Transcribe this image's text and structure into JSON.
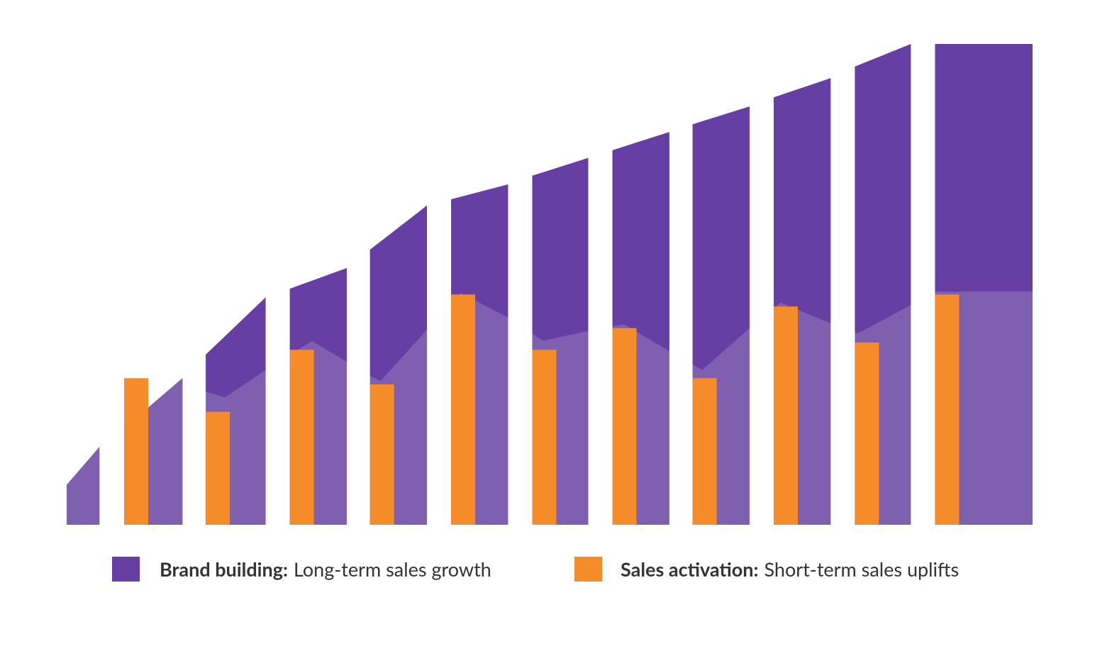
{
  "chart_data": {
    "type": "combo",
    "xlim": [
      0,
      100
    ],
    "ylim": [
      0,
      100
    ],
    "columns": [
      [
        0,
        3.4
      ],
      [
        5.95,
        12.0
      ],
      [
        14.4,
        20.6
      ],
      [
        23.1,
        29.0
      ],
      [
        31.4,
        37.3
      ],
      [
        39.8,
        45.7
      ],
      [
        48.2,
        54.0
      ],
      [
        56.5,
        62.4
      ],
      [
        64.8,
        70.7
      ],
      [
        73.2,
        79.1
      ],
      [
        81.6,
        87.4
      ],
      [
        89.9,
        100
      ]
    ],
    "series": [
      {
        "type": "area",
        "name": "Brand building:",
        "description": "Long-term sales growth",
        "color": "#673ea3",
        "x": [
          0,
          3.4,
          8.4,
          12.0,
          14.4,
          20.6,
          23.1,
          29.0,
          31.4,
          37.3,
          39.8,
          45.7,
          48.2,
          54.0,
          56.5,
          62.4,
          64.8,
          70.7,
          73.2,
          79.1,
          81.6,
          87.4,
          89.9,
          100
        ],
        "values": [
          8.3,
          16.2,
          24.3,
          30.5,
          35.4,
          47.3,
          49.1,
          53.4,
          57.2,
          66.4,
          67.7,
          70.8,
          72.6,
          76.3,
          77.9,
          81.7,
          83.3,
          87.0,
          88.9,
          92.9,
          95.3,
          100,
          100,
          100
        ]
      },
      {
        "type": "area",
        "color": "#7f5fb0",
        "x": [
          0,
          3.4,
          8.4,
          12.0,
          14.4,
          16.4,
          20.6,
          25.4,
          29.0,
          31.4,
          32.5,
          37.3,
          40.8,
          45.7,
          49.3,
          54.0,
          57.7,
          62.4,
          65.8,
          70.7,
          73.9,
          79.1,
          81.9,
          87.4,
          89.9,
          100
        ],
        "values": [
          8.3,
          16.2,
          24.3,
          30.5,
          27.7,
          26.5,
          32.2,
          38.2,
          33.9,
          31.0,
          29.9,
          40.6,
          48.2,
          43.1,
          38.3,
          40.3,
          41.7,
          36.1,
          32.2,
          40.9,
          46.2,
          41.9,
          39.8,
          45.7,
          48.5,
          48.5
        ]
      },
      {
        "type": "bar",
        "name": "Sales activation:",
        "description": "Short-term sales uplifts",
        "color": "#f58b29",
        "x": [
          5.95,
          14.4,
          23.1,
          31.4,
          39.8,
          48.2,
          56.5,
          64.8,
          73.2,
          81.6,
          89.9
        ],
        "values": [
          30.5,
          23.5,
          36.4,
          29.2,
          47.9,
          36.4,
          40.9,
          30.5,
          45.4,
          37.9,
          47.9
        ]
      }
    ]
  }
}
